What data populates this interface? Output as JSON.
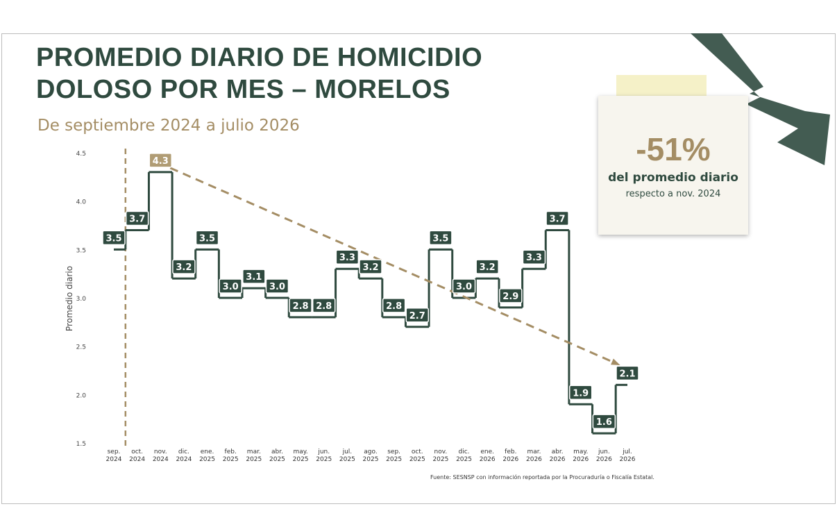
{
  "chart_data": {
    "type": "step",
    "title": "PROMEDIO DIARIO DE HOMICIDIO\nDOLOSO POR MES – MORELOS",
    "subtitle": "De septiembre 2024 a julio 2026",
    "y_label": "Promedio diario",
    "source": "Fuente: SESNSP con información reportada por la Procuraduría o Fiscalía Estatal.",
    "annotation": {
      "value": "-51%",
      "line1": "del promedio diario",
      "line2": "respecto a nov. 2024"
    },
    "categories": [
      "sep.\n2024",
      "oct.\n2024",
      "nov.\n2024",
      "dic.\n2024",
      "ene.\n2025",
      "feb.\n2025",
      "mar.\n2025",
      "abr.\n2025",
      "may.\n2025",
      "jun.\n2025",
      "jul.\n2025",
      "ago.\n2025",
      "sep.\n2025",
      "oct.\n2025",
      "nov.\n2025",
      "dic.\n2025",
      "ene.\n2026",
      "feb.\n2026",
      "mar.\n2026",
      "abr.\n2026",
      "may.\n2026",
      "jun.\n2026",
      "jul.\n2026"
    ],
    "values": [
      3.5,
      3.7,
      4.3,
      3.2,
      3.5,
      3.0,
      3.1,
      3.0,
      2.8,
      2.8,
      3.3,
      3.2,
      2.8,
      2.7,
      3.5,
      3.0,
      3.2,
      2.9,
      3.3,
      3.7,
      1.9,
      1.6,
      2.1
    ],
    "value_labels": [
      "3.5",
      "3.7",
      "4.3",
      "3.2",
      "3.5",
      "3.0",
      "3.1",
      "3.0",
      "2.8",
      "2.8",
      "3.3",
      "3.2",
      "2.8",
      "2.7",
      "3.5",
      "3.0",
      "3.2",
      "2.9",
      "3.3",
      "3.7",
      "1.9",
      "1.6",
      "2.1"
    ],
    "color": "#2f4a3f",
    "highlight": 2,
    "highlight_color": "#b09c74",
    "ylim": [
      1.5,
      4.5
    ],
    "yticks": [
      1.5,
      {
        "value": 2,
        "label": "2.0"
      },
      2.5,
      {
        "value": 3,
        "label": "3.0"
      },
      3.5,
      {
        "value": 4,
        "label": "4.0"
      },
      4.5
    ]
  }
}
